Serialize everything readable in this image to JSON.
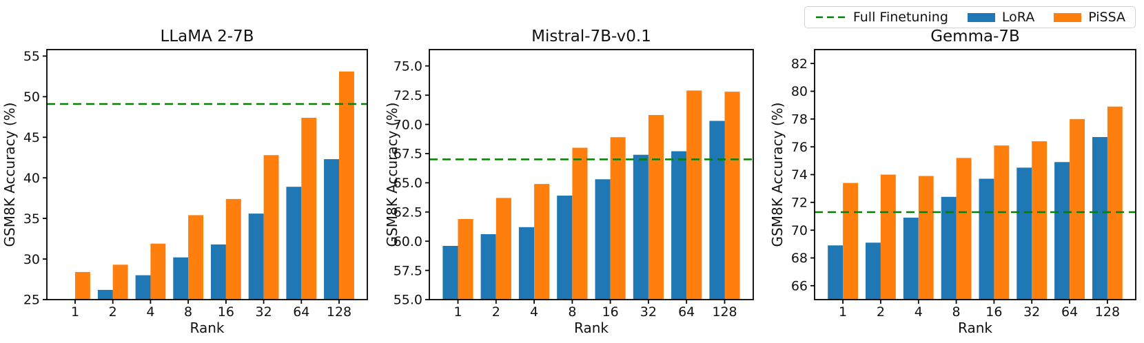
{
  "figure": {
    "type": "matplotlib-style multi-panel bar chart",
    "shared_xlabel": "Rank",
    "shared_ylabel": "GSM8K Accuracy (%)"
  },
  "colors": {
    "lora": "#1f77b4",
    "pissa": "#ff7f0e",
    "full_finetuning": "#008000",
    "spine": "#000000",
    "text": "#111111",
    "legend_border": "#d2d2d2"
  },
  "legend": {
    "position": "top-right of figure",
    "items": [
      {
        "label": "Full Finetuning",
        "marker": "dashed-line",
        "color": "#008000"
      },
      {
        "label": "LoRA",
        "marker": "swatch",
        "color": "#1f77b4"
      },
      {
        "label": "PiSSA",
        "marker": "swatch",
        "color": "#ff7f0e"
      }
    ]
  },
  "chart_data": [
    {
      "type": "bar",
      "title": "LLaMA 2-7B",
      "xlabel": "Rank",
      "ylabel": "GSM8K Accuracy (%)",
      "categories": [
        "1",
        "2",
        "4",
        "8",
        "16",
        "32",
        "64",
        "128"
      ],
      "series": [
        {
          "name": "LoRA",
          "color": "#1f77b4",
          "values": [
            null,
            26.2,
            28.0,
            30.2,
            31.8,
            35.6,
            38.9,
            42.3
          ]
        },
        {
          "name": "PiSSA",
          "color": "#ff7f0e",
          "values": [
            28.4,
            29.3,
            31.9,
            35.4,
            37.4,
            42.8,
            47.4,
            53.1
          ]
        }
      ],
      "ref_line": {
        "label": "Full Finetuning",
        "value": 49.1,
        "color": "#008000",
        "style": "dashed"
      },
      "ylim": [
        25,
        55.8
      ],
      "yticks": [
        25,
        30,
        35,
        40,
        45,
        50,
        55
      ],
      "ytick_labels": [
        "25",
        "30",
        "35",
        "40",
        "45",
        "50",
        "55"
      ],
      "grid": false,
      "note": "LoRA rank-1 bar is below the axis minimum and not visible"
    },
    {
      "type": "bar",
      "title": "Mistral-7B-v0.1",
      "xlabel": "Rank",
      "ylabel": "GSM8K Accuracy (%)",
      "categories": [
        "1",
        "2",
        "4",
        "8",
        "16",
        "32",
        "64",
        "128"
      ],
      "series": [
        {
          "name": "LoRA",
          "color": "#1f77b4",
          "values": [
            59.6,
            60.6,
            61.2,
            63.9,
            65.3,
            67.4,
            67.7,
            70.3
          ]
        },
        {
          "name": "PiSSA",
          "color": "#ff7f0e",
          "values": [
            61.9,
            63.7,
            64.9,
            68.0,
            68.9,
            70.8,
            72.9,
            72.8
          ]
        }
      ],
      "ref_line": {
        "label": "Full Finetuning",
        "value": 67.0,
        "color": "#008000",
        "style": "dashed"
      },
      "ylim": [
        55,
        76.4
      ],
      "yticks": [
        55.0,
        57.5,
        60.0,
        62.5,
        65.0,
        67.5,
        70.0,
        72.5,
        75.0
      ],
      "ytick_labels": [
        "55.0",
        "57.5",
        "60.0",
        "62.5",
        "65.0",
        "67.5",
        "70.0",
        "72.5",
        "75.0"
      ],
      "grid": false
    },
    {
      "type": "bar",
      "title": "Gemma-7B",
      "xlabel": "Rank",
      "ylabel": "GSM8K Accuracy (%)",
      "categories": [
        "1",
        "2",
        "4",
        "8",
        "16",
        "32",
        "64",
        "128"
      ],
      "series": [
        {
          "name": "LoRA",
          "color": "#1f77b4",
          "values": [
            68.9,
            69.1,
            70.9,
            72.4,
            73.7,
            74.5,
            74.9,
            76.7
          ]
        },
        {
          "name": "PiSSA",
          "color": "#ff7f0e",
          "values": [
            73.4,
            74.0,
            73.9,
            75.2,
            76.1,
            76.4,
            78.0,
            78.9
          ]
        }
      ],
      "ref_line": {
        "label": "Full Finetuning",
        "value": 71.3,
        "color": "#008000",
        "style": "dashed"
      },
      "ylim": [
        65,
        83
      ],
      "yticks": [
        66,
        68,
        70,
        72,
        74,
        76,
        78,
        80,
        82
      ],
      "ytick_labels": [
        "66",
        "68",
        "70",
        "72",
        "74",
        "76",
        "78",
        "80",
        "82"
      ],
      "grid": false
    }
  ]
}
